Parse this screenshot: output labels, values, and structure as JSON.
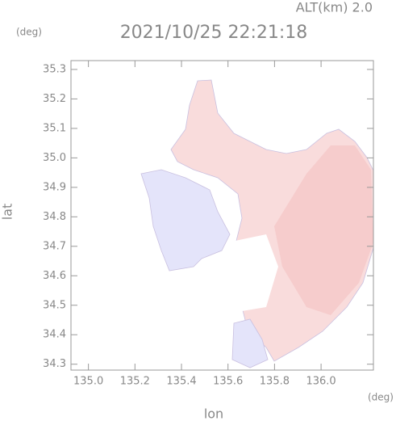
{
  "chart_data": {
    "type": "map",
    "annotation": "ALT(km) 2.0",
    "title": "2021/10/25 22:21:18",
    "x_label": "lon",
    "y_label": "lat",
    "x_unit": "(deg)",
    "y_unit": "(deg)",
    "xlim": [
      134.925,
      136.225
    ],
    "ylim": [
      34.28,
      35.33
    ],
    "xticks": [
      {
        "value": 135,
        "label": "135.0"
      },
      135.2,
      135.4,
      135.6,
      135.8,
      {
        "value": 136,
        "label": "136.0"
      }
    ],
    "yticks": [
      35.3,
      35.2,
      35.1,
      {
        "value": 35,
        "label": "35.0"
      },
      34.9,
      34.8,
      34.7,
      34.6,
      34.5,
      34.4,
      34.3
    ]
  }
}
